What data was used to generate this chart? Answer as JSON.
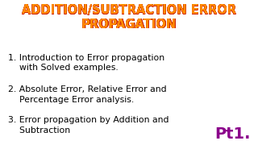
{
  "background_color": "#ffffff",
  "title_line1": "ADDITION/SUBTRACTION ERROR",
  "title_line2": "PROPAGATION",
  "title_color": "#FF8C00",
  "title_outline_color": "#cc2200",
  "title_fontsize": 10.5,
  "title_fontweight": "bold",
  "items": [
    "1. Introduction to Error propagation\n    with Solved examples.",
    "2. Absolute Error, Relative Error and\n    Percentage Error analysis.",
    "3. Error propagation by Addition and\n    Subtraction"
  ],
  "item_color": "#000000",
  "item_fontsize": 7.8,
  "pt1_text": "Pt1.",
  "pt1_color": "#8B008B",
  "pt1_fontsize": 14,
  "pt1_fontweight": "bold"
}
